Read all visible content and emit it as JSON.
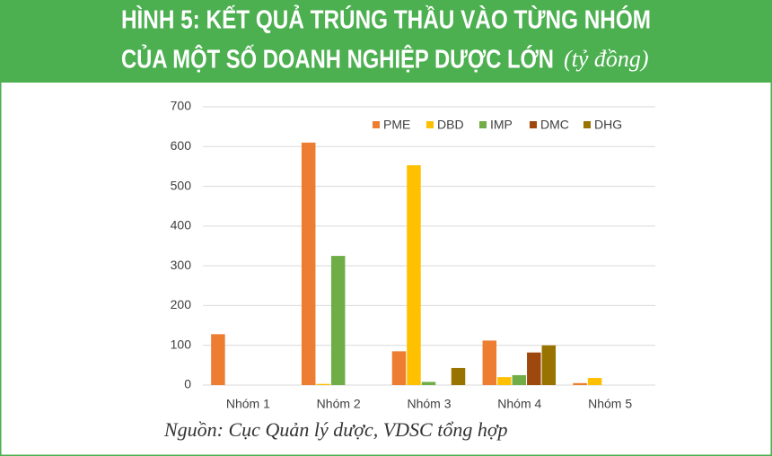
{
  "chart_data": {
    "type": "bar",
    "title_lines": [
      "HÌNH 5: KẾT QUẢ TRÚNG THẦU VÀO TỪNG NHÓM",
      "CỦA MỘT SỐ DOANH NGHIỆP DƯỢC LỚN"
    ],
    "unit": "(tỷ đồng)",
    "source": "Nguồn: Cục Quản lý dược, VDSC tổng hợp",
    "categories": [
      "Nhóm 1",
      "Nhóm 2",
      "Nhóm 3",
      "Nhóm 4",
      "Nhóm 5"
    ],
    "series": [
      {
        "name": "PME",
        "color": "#ed7d31",
        "values": [
          128,
          610,
          85,
          112,
          5
        ]
      },
      {
        "name": "DBD",
        "color": "#ffc000",
        "values": [
          0,
          3,
          553,
          20,
          18
        ]
      },
      {
        "name": "IMP",
        "color": "#70ad47",
        "values": [
          0,
          325,
          8,
          25,
          0
        ]
      },
      {
        "name": "DMC",
        "color": "#9e480e",
        "values": [
          0,
          0,
          0,
          82,
          0
        ]
      },
      {
        "name": "DHG",
        "color": "#997300",
        "values": [
          0,
          0,
          43,
          100,
          0
        ]
      }
    ],
    "ylim": [
      0,
      700
    ],
    "yticks": [
      0,
      100,
      200,
      300,
      400,
      500,
      600,
      700
    ],
    "grid": true,
    "legend": "top"
  }
}
